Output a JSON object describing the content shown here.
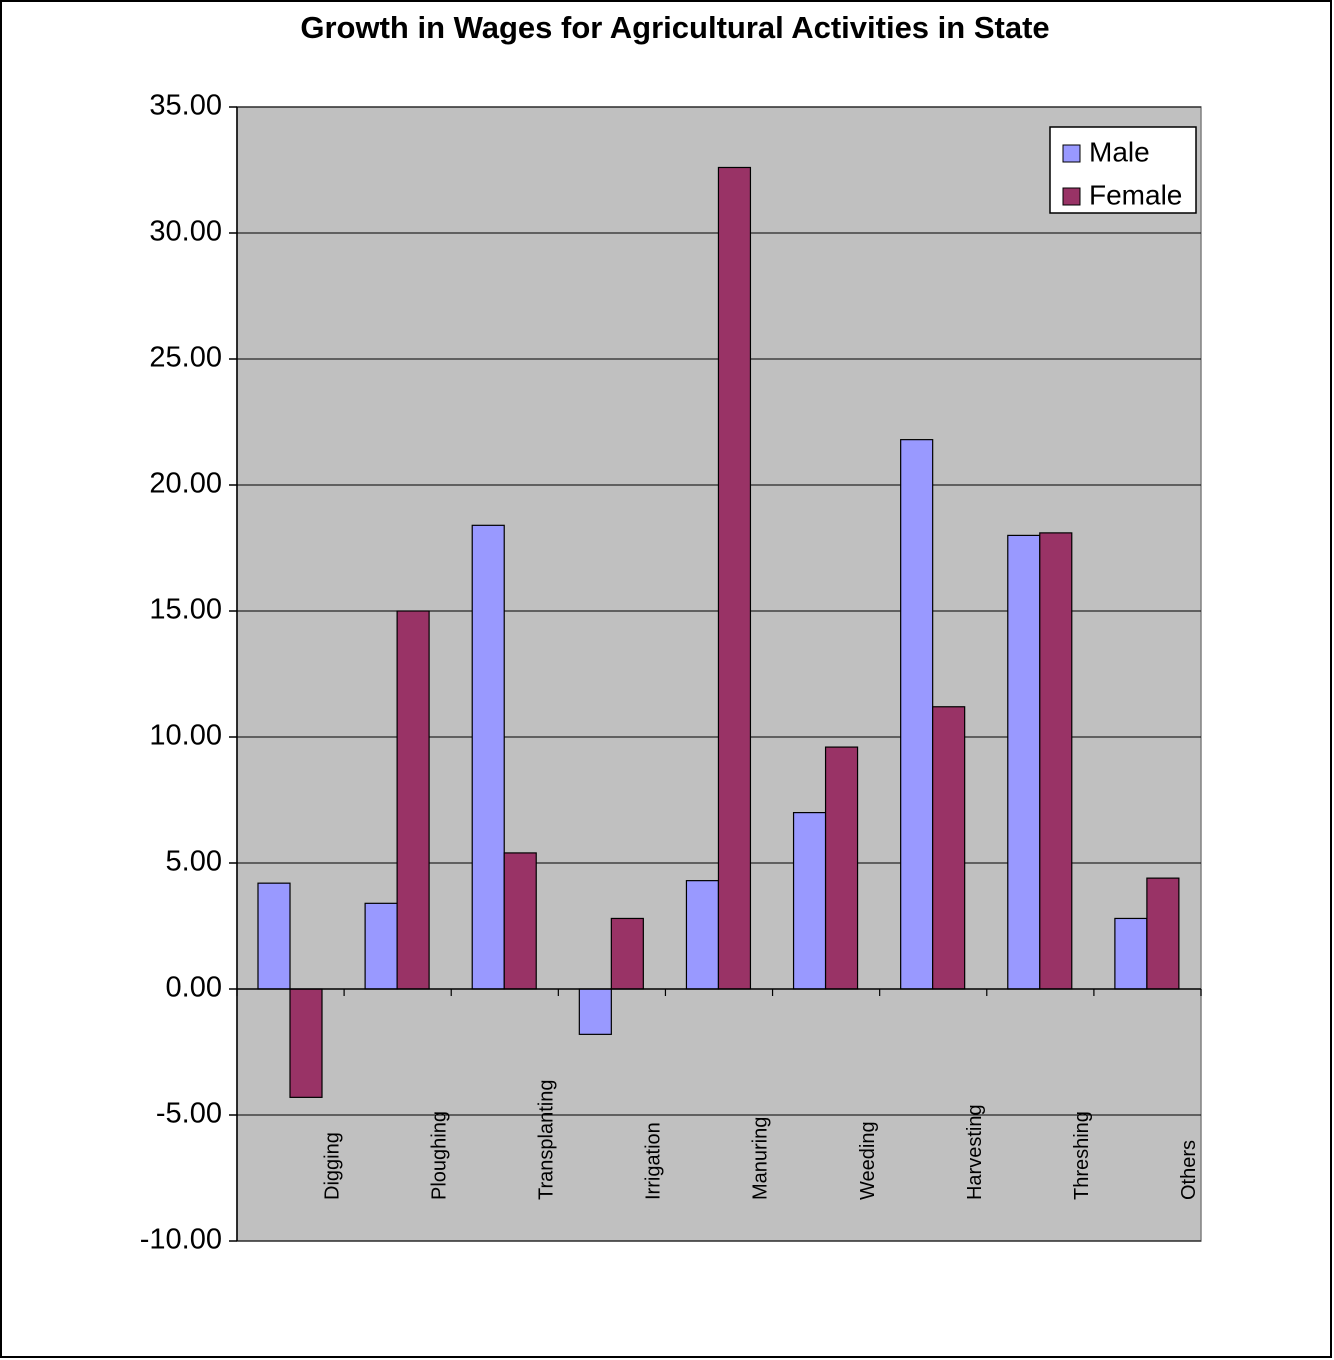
{
  "chart_data": {
    "type": "bar",
    "title": "Growth in Wages for Agricultural Activities in State",
    "categories": [
      "Digging",
      "Ploughing",
      "Transplanting",
      "Irrigation",
      "Manuring",
      "Weeding",
      "Harvesting",
      "Threshing",
      "Others"
    ],
    "series": [
      {
        "name": "Male",
        "color": "#9999ff",
        "values": [
          4.2,
          3.4,
          18.4,
          -1.8,
          4.3,
          7.0,
          21.8,
          18.0,
          2.8
        ]
      },
      {
        "name": "Female",
        "color": "#993366",
        "values": [
          -4.3,
          15.0,
          5.4,
          2.8,
          32.6,
          9.6,
          11.2,
          18.1,
          4.4
        ]
      }
    ],
    "ylim": [
      -10,
      35
    ],
    "yticks": [
      {
        "value": -10,
        "label": "-10.00"
      },
      {
        "value": -5,
        "label": "-5.00"
      },
      {
        "value": 0,
        "label": "0.00"
      },
      {
        "value": 5,
        "label": "5.00"
      },
      {
        "value": 10,
        "label": "10.00"
      },
      {
        "value": 15,
        "label": "15.00"
      },
      {
        "value": 20,
        "label": "20.00"
      },
      {
        "value": 25,
        "label": "25.00"
      },
      {
        "value": 30,
        "label": "30.00"
      },
      {
        "value": 35,
        "label": "35.00"
      }
    ],
    "grid": true,
    "legend": "top-right"
  }
}
